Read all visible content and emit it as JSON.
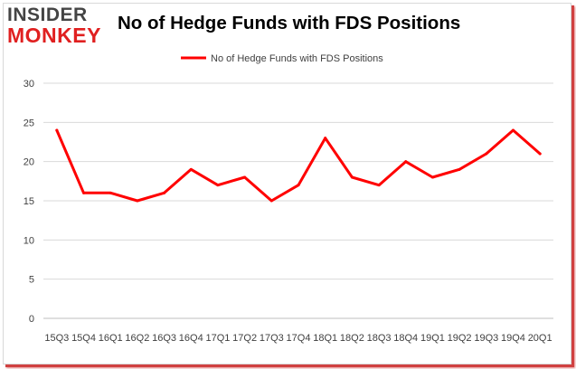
{
  "logo": {
    "top": "INSIDER",
    "bottom": "MONKEY"
  },
  "chart_data": {
    "type": "line",
    "title": "No of Hedge Funds with FDS Positions",
    "categories": [
      "15Q3",
      "15Q4",
      "16Q1",
      "16Q2",
      "16Q3",
      "16Q4",
      "17Q1",
      "17Q2",
      "17Q3",
      "17Q4",
      "18Q1",
      "18Q2",
      "18Q3",
      "18Q4",
      "19Q1",
      "19Q2",
      "19Q3",
      "19Q4",
      "20Q1"
    ],
    "series": [
      {
        "name": "No of Hedge Funds with FDS Positions",
        "values": [
          24,
          16,
          16,
          15,
          16,
          19,
          17,
          18,
          15,
          17,
          23,
          18,
          17,
          20,
          18,
          19,
          21,
          24,
          21
        ],
        "color": "#ff0000"
      }
    ],
    "ylim": [
      0,
      30
    ],
    "yticks": [
      0,
      5,
      10,
      15,
      20,
      25,
      30
    ],
    "grid": true,
    "legend": "top-center",
    "xlabel": "",
    "ylabel": ""
  }
}
